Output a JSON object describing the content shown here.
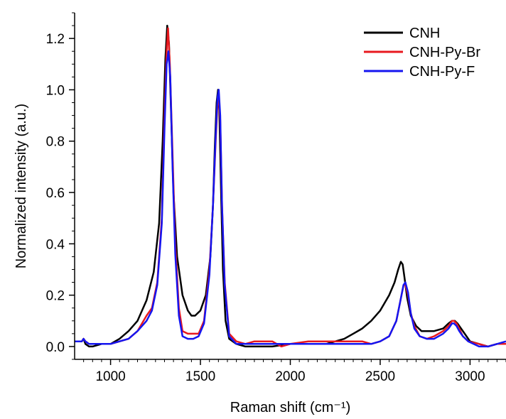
{
  "chart_data": {
    "type": "line",
    "xlabel": "Raman shift (cm⁻¹)",
    "ylabel": "Normalized intensity (a.u.)",
    "xlim": [
      800,
      3200
    ],
    "ylim": [
      -0.05,
      1.3
    ],
    "x_ticks": [
      1000,
      1500,
      2000,
      2500,
      3000
    ],
    "y_ticks": [
      0.0,
      0.2,
      0.4,
      0.6,
      0.8,
      1.0,
      1.2
    ],
    "x_tick_labels": [
      "1000",
      "1500",
      "2000",
      "2500",
      "3000"
    ],
    "y_tick_labels": [
      "0.0",
      "0.2",
      "0.4",
      "0.6",
      "0.8",
      "1.0",
      "1.2"
    ],
    "legend_position": "top-right",
    "grid": false,
    "series": [
      {
        "name": "CNH",
        "color": "#000000",
        "x": [
          800,
          840,
          850,
          860,
          880,
          900,
          950,
          1000,
          1050,
          1100,
          1150,
          1200,
          1240,
          1270,
          1290,
          1305,
          1315,
          1325,
          1335,
          1350,
          1370,
          1400,
          1430,
          1450,
          1470,
          1500,
          1530,
          1555,
          1570,
          1580,
          1590,
          1598,
          1605,
          1615,
          1625,
          1640,
          1660,
          1700,
          1750,
          1800,
          1900,
          2000,
          2100,
          2200,
          2300,
          2350,
          2400,
          2450,
          2500,
          2550,
          2580,
          2600,
          2615,
          2625,
          2635,
          2650,
          2670,
          2700,
          2730,
          2750,
          2800,
          2850,
          2880,
          2900,
          2915,
          2930,
          2950,
          2980,
          3000,
          3050,
          3100,
          3150,
          3200
        ],
        "y": [
          0.02,
          0.02,
          0.03,
          0.01,
          0.0,
          0.0,
          0.01,
          0.01,
          0.03,
          0.06,
          0.1,
          0.18,
          0.29,
          0.48,
          0.8,
          1.12,
          1.25,
          1.18,
          0.95,
          0.6,
          0.35,
          0.2,
          0.14,
          0.12,
          0.12,
          0.14,
          0.2,
          0.35,
          0.55,
          0.78,
          0.95,
          1.0,
          0.92,
          0.6,
          0.3,
          0.1,
          0.03,
          0.01,
          0.0,
          0.0,
          0.0,
          0.01,
          0.01,
          0.01,
          0.03,
          0.05,
          0.07,
          0.1,
          0.14,
          0.2,
          0.25,
          0.3,
          0.33,
          0.32,
          0.27,
          0.19,
          0.12,
          0.08,
          0.06,
          0.06,
          0.06,
          0.07,
          0.09,
          0.1,
          0.1,
          0.09,
          0.07,
          0.04,
          0.02,
          0.01,
          0.0,
          0.01,
          0.01
        ]
      },
      {
        "name": "CNH-Py-Br",
        "color": "#e8191f",
        "x": [
          800,
          840,
          850,
          860,
          880,
          900,
          950,
          1000,
          1050,
          1100,
          1150,
          1200,
          1230,
          1260,
          1285,
          1300,
          1312,
          1320,
          1330,
          1345,
          1360,
          1380,
          1400,
          1430,
          1460,
          1490,
          1520,
          1550,
          1570,
          1585,
          1595,
          1602,
          1610,
          1620,
          1635,
          1660,
          1700,
          1750,
          1800,
          1900,
          1950,
          2000,
          2100,
          2200,
          2300,
          2400,
          2450,
          2500,
          2550,
          2590,
          2610,
          2630,
          2640,
          2655,
          2670,
          2690,
          2720,
          2760,
          2800,
          2850,
          2880,
          2900,
          2910,
          2925,
          2940,
          2960,
          2990,
          3050,
          3100,
          3150,
          3200
        ],
        "y": [
          0.02,
          0.02,
          0.03,
          0.02,
          0.01,
          0.01,
          0.01,
          0.01,
          0.02,
          0.03,
          0.06,
          0.12,
          0.15,
          0.25,
          0.5,
          0.9,
          1.15,
          1.24,
          1.1,
          0.75,
          0.4,
          0.15,
          0.06,
          0.05,
          0.05,
          0.05,
          0.1,
          0.3,
          0.55,
          0.8,
          0.95,
          0.97,
          0.88,
          0.55,
          0.25,
          0.05,
          0.02,
          0.01,
          0.02,
          0.02,
          0.0,
          0.01,
          0.02,
          0.02,
          0.02,
          0.02,
          0.01,
          0.02,
          0.04,
          0.1,
          0.17,
          0.24,
          0.24,
          0.2,
          0.13,
          0.08,
          0.04,
          0.03,
          0.04,
          0.06,
          0.08,
          0.1,
          0.1,
          0.09,
          0.07,
          0.04,
          0.02,
          0.01,
          0.0,
          0.01,
          0.01
        ]
      },
      {
        "name": "CNH-Py-F",
        "color": "#1515f0",
        "x": [
          800,
          840,
          850,
          860,
          880,
          900,
          950,
          1000,
          1050,
          1100,
          1150,
          1200,
          1230,
          1260,
          1285,
          1300,
          1312,
          1322,
          1332,
          1345,
          1360,
          1380,
          1400,
          1430,
          1460,
          1490,
          1520,
          1550,
          1570,
          1585,
          1595,
          1602,
          1610,
          1620,
          1635,
          1660,
          1700,
          1750,
          1800,
          1900,
          2000,
          2100,
          2200,
          2300,
          2400,
          2450,
          2500,
          2550,
          2590,
          2610,
          2630,
          2640,
          2655,
          2670,
          2690,
          2720,
          2760,
          2800,
          2850,
          2880,
          2900,
          2910,
          2925,
          2940,
          2960,
          2990,
          3050,
          3100,
          3150,
          3200
        ],
        "y": [
          0.02,
          0.02,
          0.03,
          0.02,
          0.01,
          0.01,
          0.01,
          0.01,
          0.02,
          0.03,
          0.06,
          0.1,
          0.14,
          0.24,
          0.48,
          0.85,
          1.1,
          1.15,
          1.05,
          0.7,
          0.36,
          0.12,
          0.04,
          0.03,
          0.03,
          0.04,
          0.09,
          0.28,
          0.55,
          0.82,
          0.97,
          1.0,
          0.9,
          0.55,
          0.24,
          0.04,
          0.01,
          0.01,
          0.01,
          0.01,
          0.01,
          0.01,
          0.01,
          0.01,
          0.01,
          0.01,
          0.02,
          0.04,
          0.1,
          0.17,
          0.24,
          0.25,
          0.21,
          0.13,
          0.07,
          0.04,
          0.03,
          0.03,
          0.05,
          0.07,
          0.09,
          0.09,
          0.08,
          0.06,
          0.04,
          0.02,
          0.0,
          0.0,
          0.01,
          0.02
        ]
      }
    ]
  }
}
